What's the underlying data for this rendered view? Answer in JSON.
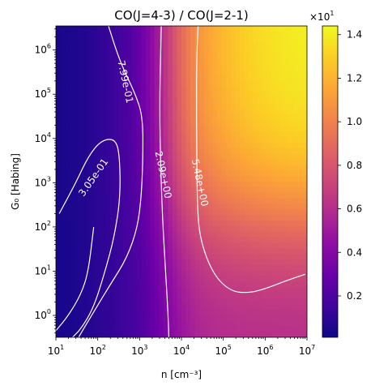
{
  "chart_data": {
    "type": "heatmap",
    "title": "CO(J=4-3) / CO(J=2-1)",
    "xlabel": "n [cm⁻³]",
    "ylabel": "G₀ [Habing]",
    "x_scale": "log",
    "y_scale": "log",
    "xlim": [
      10,
      10000000
    ],
    "ylim": [
      0.32,
      3500000
    ],
    "colormap": "plasma",
    "x_ticks": [
      {
        "value": 10,
        "base": "10",
        "exp": "1"
      },
      {
        "value": 100,
        "base": "10",
        "exp": "2"
      },
      {
        "value": 1000,
        "base": "10",
        "exp": "3"
      },
      {
        "value": 10000,
        "base": "10",
        "exp": "4"
      },
      {
        "value": 100000,
        "base": "10",
        "exp": "5"
      },
      {
        "value": 1000000,
        "base": "10",
        "exp": "6"
      },
      {
        "value": 10000000,
        "base": "10",
        "exp": "7"
      }
    ],
    "y_ticks": [
      {
        "value": 1,
        "base": "10",
        "exp": "0"
      },
      {
        "value": 10,
        "base": "10",
        "exp": "1"
      },
      {
        "value": 100,
        "base": "10",
        "exp": "2"
      },
      {
        "value": 1000,
        "base": "10",
        "exp": "3"
      },
      {
        "value": 10000,
        "base": "10",
        "exp": "4"
      },
      {
        "value": 100000,
        "base": "10",
        "exp": "5"
      },
      {
        "value": 1000000,
        "base": "10",
        "exp": "6"
      }
    ],
    "colorbar": {
      "range": [
        0.01,
        1.44
      ],
      "multiplier_base": "×10",
      "multiplier_exp": "1",
      "ticks": [
        {
          "value": 0.2,
          "label": "0.2"
        },
        {
          "value": 0.4,
          "label": "0.4"
        },
        {
          "value": 0.6,
          "label": "0.6"
        },
        {
          "value": 0.8,
          "label": "0.8"
        },
        {
          "value": 1.0,
          "label": "1.0"
        },
        {
          "value": 1.2,
          "label": "1.2"
        },
        {
          "value": 1.4,
          "label": "1.4"
        }
      ]
    },
    "contours": [
      {
        "label": "3.05e-01",
        "label_at": {
          "x": 80,
          "y": 1300
        },
        "segments": [
          [
            [
              12,
              200
            ],
            [
              30,
              1000
            ],
            [
              60,
              4000
            ],
            [
              120,
              9000
            ],
            [
              250,
              10000
            ],
            [
              330,
              5000
            ],
            [
              350,
              500
            ],
            [
              250,
              60
            ],
            [
              150,
              10
            ],
            [
              80,
              1.5
            ],
            [
              40,
              0.5
            ],
            [
              25,
              0.32
            ]
          ],
          [
            [
              10,
              0.45
            ],
            [
              20,
              1
            ],
            [
              40,
              3
            ],
            [
              60,
              10
            ],
            [
              80,
              100
            ]
          ]
        ]
      },
      {
        "label": "7.99e-01",
        "label_at": {
          "x": 450,
          "y": 190000
        },
        "segments": [
          [
            [
              180,
              3500000
            ],
            [
              350,
              500000
            ],
            [
              800,
              100000
            ],
            [
              1200,
              30000
            ],
            [
              1200,
              3000
            ],
            [
              1100,
              500
            ],
            [
              900,
              100
            ],
            [
              500,
              20
            ],
            [
              200,
              5
            ],
            [
              80,
              1.2
            ],
            [
              40,
              0.4
            ],
            [
              35,
              0.32
            ]
          ]
        ]
      },
      {
        "label": "2.09e+00",
        "label_at": {
          "x": 3600,
          "y": 1500
        },
        "segments": [
          [
            [
              3300,
              3500000
            ],
            [
              3200,
              1000000
            ],
            [
              3000,
              50000
            ],
            [
              3200,
              2000
            ],
            [
              3600,
              100
            ],
            [
              4200,
              10
            ],
            [
              4800,
              1
            ],
            [
              5000,
              0.32
            ]
          ]
        ]
      },
      {
        "label": "5.48e+00",
        "label_at": {
          "x": 27000,
          "y": 1000
        },
        "segments": [
          [
            [
              25000,
              3500000
            ],
            [
              23000,
              500000
            ],
            [
              23000,
              50000
            ],
            [
              23000,
              10000
            ],
            [
              24000,
              200
            ],
            [
              30000,
              40
            ],
            [
              60000,
              8
            ],
            [
              150000,
              3.5
            ],
            [
              400000,
              3.2
            ],
            [
              1000000,
              4
            ],
            [
              3000000,
              6
            ],
            [
              9000000,
              8.5
            ]
          ]
        ]
      }
    ]
  }
}
